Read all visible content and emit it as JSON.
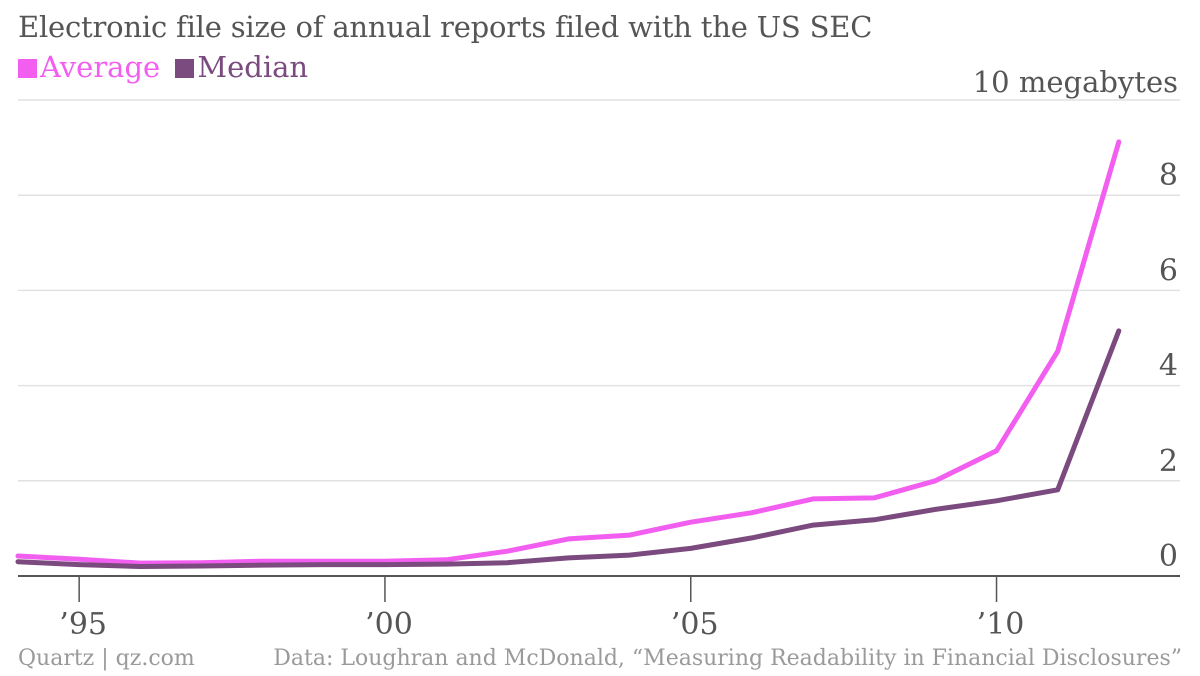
{
  "chart_data": {
    "type": "line",
    "title": "Electronic file size of annual reports filed with the US SEC",
    "y_unit_label": "10 megabytes",
    "x": [
      1994,
      1995,
      1996,
      1997,
      1998,
      1999,
      2000,
      2001,
      2002,
      2003,
      2004,
      2005,
      2006,
      2007,
      2008,
      2009,
      2010,
      2011,
      2012
    ],
    "xlim": [
      1994,
      2013
    ],
    "x_ticks": [
      1995,
      2000,
      2005,
      2010
    ],
    "x_tick_labels": [
      "’95",
      "’00",
      "’05",
      "’10"
    ],
    "ylim": [
      0,
      10
    ],
    "y_ticks": [
      0,
      2,
      4,
      6,
      8
    ],
    "y_tick_labels": [
      "0",
      "2",
      "4",
      "6",
      "8"
    ],
    "grid": true,
    "legend_position": "top-left",
    "series": [
      {
        "name": "Average",
        "color": "#f25ef0",
        "values": [
          0.42,
          0.35,
          0.27,
          0.28,
          0.31,
          0.31,
          0.31,
          0.34,
          0.52,
          0.78,
          0.86,
          1.13,
          1.33,
          1.62,
          1.64,
          2.0,
          2.63,
          4.72,
          9.12
        ]
      },
      {
        "name": "Median",
        "color": "#7b4a7e",
        "values": [
          0.3,
          0.24,
          0.2,
          0.21,
          0.23,
          0.24,
          0.24,
          0.25,
          0.28,
          0.38,
          0.44,
          0.58,
          0.8,
          1.07,
          1.18,
          1.4,
          1.58,
          1.81,
          5.15
        ]
      }
    ]
  },
  "footer": {
    "source_left": "Quartz | qz.com",
    "source_right": "Data: Loughran and McDonald, “Measuring Readability in Financial Disclosures”"
  },
  "colors": {
    "background": "#ffffff",
    "grid": "#e2e2e2",
    "axis": "#555555",
    "text": "#555555",
    "footer_text": "#9a9a9a"
  }
}
